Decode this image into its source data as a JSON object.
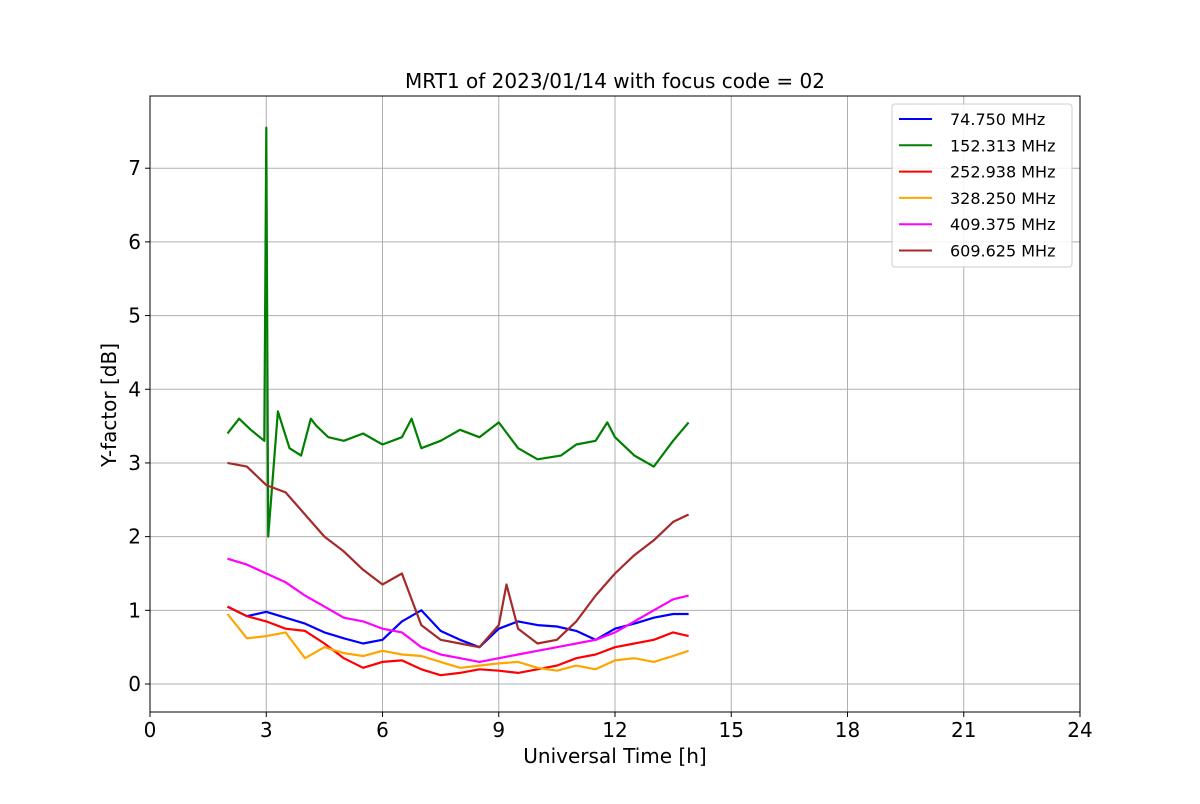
{
  "chart_data": {
    "type": "line",
    "title": "MRT1 of 2023/01/14 with focus code = 02",
    "xlabel": "Universal Time [h]",
    "ylabel": "Y-factor [dB]",
    "xlim": [
      0,
      24
    ],
    "ylim": [
      -0.38,
      7.98
    ],
    "xticks": [
      0,
      3,
      6,
      9,
      12,
      15,
      18,
      21,
      24
    ],
    "yticks": [
      0,
      1,
      2,
      3,
      4,
      5,
      6,
      7
    ],
    "grid": true,
    "legend_position": "top-right",
    "series": [
      {
        "name": " 74.750 MHz",
        "color": "#0000ff",
        "x": [
          2.0,
          2.5,
          3.0,
          3.5,
          4.0,
          4.5,
          5.0,
          5.5,
          6.0,
          6.5,
          7.0,
          7.5,
          8.0,
          8.5,
          9.0,
          9.5,
          10.0,
          10.5,
          11.0,
          11.5,
          12.0,
          12.5,
          13.0,
          13.5,
          13.9
        ],
        "y": [
          1.05,
          0.92,
          0.98,
          0.9,
          0.82,
          0.7,
          0.62,
          0.55,
          0.6,
          0.85,
          1.0,
          0.72,
          0.6,
          0.5,
          0.75,
          0.85,
          0.8,
          0.78,
          0.72,
          0.6,
          0.75,
          0.82,
          0.9,
          0.95,
          0.95
        ]
      },
      {
        "name": "152.313 MHz",
        "color": "#008000",
        "x": [
          2.0,
          2.3,
          2.6,
          2.95,
          3.0,
          3.05,
          3.3,
          3.6,
          3.9,
          4.15,
          4.3,
          4.6,
          5.0,
          5.5,
          6.0,
          6.5,
          6.75,
          7.0,
          7.5,
          8.0,
          8.5,
          9.0,
          9.5,
          10.0,
          10.6,
          11.0,
          11.5,
          11.8,
          12.0,
          12.5,
          13.0,
          13.5,
          13.9
        ],
        "y": [
          3.4,
          3.6,
          3.45,
          3.3,
          7.55,
          2.0,
          3.7,
          3.2,
          3.1,
          3.6,
          3.5,
          3.35,
          3.3,
          3.4,
          3.25,
          3.35,
          3.6,
          3.2,
          3.3,
          3.45,
          3.35,
          3.55,
          3.2,
          3.05,
          3.1,
          3.25,
          3.3,
          3.55,
          3.35,
          3.1,
          2.95,
          3.3,
          3.55
        ]
      },
      {
        "name": "252.938 MHz",
        "color": "#ff0000",
        "x": [
          2.0,
          2.5,
          3.0,
          3.5,
          4.0,
          4.5,
          5.0,
          5.5,
          6.0,
          6.5,
          7.0,
          7.5,
          8.0,
          8.5,
          9.0,
          9.5,
          10.0,
          10.5,
          11.0,
          11.5,
          12.0,
          12.5,
          13.0,
          13.5,
          13.9
        ],
        "y": [
          1.05,
          0.92,
          0.85,
          0.75,
          0.72,
          0.55,
          0.35,
          0.22,
          0.3,
          0.32,
          0.2,
          0.12,
          0.15,
          0.2,
          0.18,
          0.15,
          0.2,
          0.25,
          0.35,
          0.4,
          0.5,
          0.55,
          0.6,
          0.7,
          0.65
        ]
      },
      {
        "name": "328.250 MHz",
        "color": "#ffa500",
        "x": [
          2.0,
          2.5,
          3.0,
          3.5,
          4.0,
          4.5,
          5.0,
          5.5,
          6.0,
          6.5,
          7.0,
          7.5,
          8.0,
          8.5,
          9.0,
          9.5,
          10.0,
          10.5,
          11.0,
          11.5,
          12.0,
          12.5,
          13.0,
          13.5,
          13.9
        ],
        "y": [
          0.95,
          0.62,
          0.65,
          0.7,
          0.35,
          0.5,
          0.42,
          0.38,
          0.45,
          0.4,
          0.38,
          0.3,
          0.22,
          0.25,
          0.28,
          0.3,
          0.22,
          0.18,
          0.25,
          0.2,
          0.32,
          0.35,
          0.3,
          0.38,
          0.45
        ]
      },
      {
        "name": "409.375 MHz",
        "color": "#ff00ff",
        "x": [
          2.0,
          2.5,
          3.0,
          3.5,
          4.0,
          4.5,
          5.0,
          5.5,
          6.0,
          6.5,
          7.0,
          7.5,
          8.0,
          8.5,
          9.0,
          9.5,
          10.0,
          10.5,
          11.0,
          11.5,
          12.0,
          12.5,
          13.0,
          13.5,
          13.9
        ],
        "y": [
          1.7,
          1.62,
          1.5,
          1.38,
          1.2,
          1.05,
          0.9,
          0.85,
          0.75,
          0.7,
          0.5,
          0.4,
          0.35,
          0.3,
          0.35,
          0.4,
          0.45,
          0.5,
          0.55,
          0.6,
          0.7,
          0.85,
          1.0,
          1.15,
          1.2
        ]
      },
      {
        "name": "609.625 MHz",
        "color": "#a52a2a",
        "x": [
          2.0,
          2.5,
          3.0,
          3.5,
          4.0,
          4.5,
          5.0,
          5.5,
          6.0,
          6.5,
          7.0,
          7.5,
          8.0,
          8.5,
          9.0,
          9.2,
          9.5,
          10.0,
          10.5,
          11.0,
          11.5,
          12.0,
          12.5,
          13.0,
          13.5,
          13.9
        ],
        "y": [
          3.0,
          2.95,
          2.7,
          2.6,
          2.3,
          2.0,
          1.8,
          1.55,
          1.35,
          1.5,
          0.8,
          0.6,
          0.55,
          0.5,
          0.8,
          1.35,
          0.75,
          0.55,
          0.6,
          0.85,
          1.2,
          1.5,
          1.75,
          1.95,
          2.2,
          2.3
        ]
      }
    ]
  }
}
